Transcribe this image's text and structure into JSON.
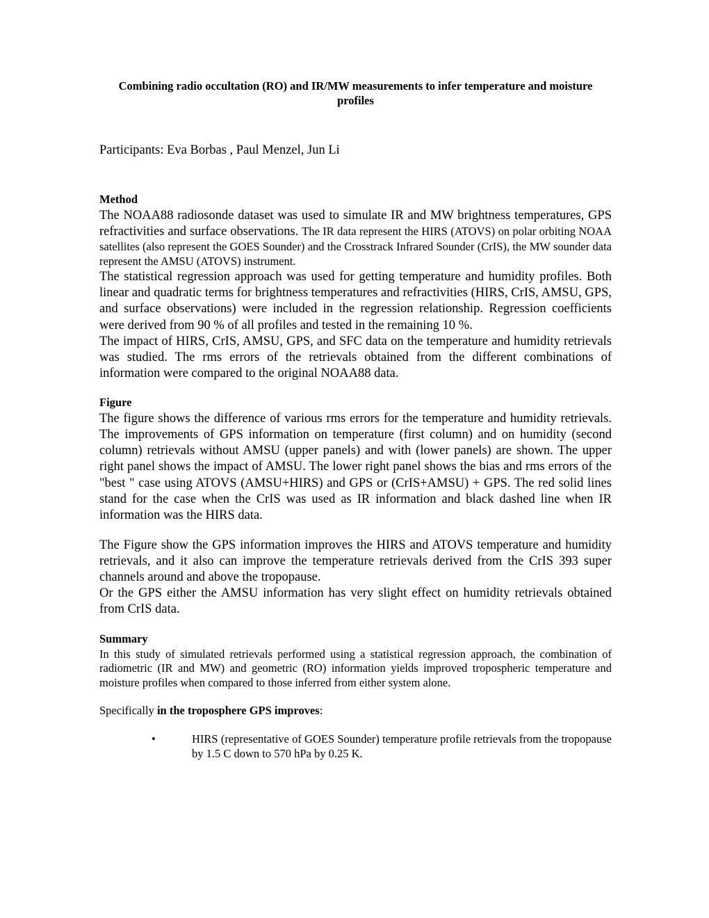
{
  "title": "Combining radio occultation (RO) and IR/MW measurements to infer temperature and moisture profiles",
  "participants": "Participants: Eva Borbas , Paul Menzel, Jun Li",
  "sections": {
    "method": {
      "heading": "Method",
      "para1_large": "The NOAA88 radiosonde dataset was used to simulate IR and MW brightness temperatures, GPS refractivities and surface observations. ",
      "para1_small": "The IR data represent the HIRS (ATOVS) on polar orbiting NOAA satellites (also represent the GOES Sounder) and the Crosstrack Infrared Sounder (CrIS), the MW sounder data represent the AMSU (ATOVS) instrument.",
      "para2": "The statistical regression approach was used for getting temperature and humidity profiles. Both linear and quadratic terms for brightness temperatures and refractivities (HIRS, CrIS, AMSU, GPS, and surface observations) were included in the regression relationship. Regression coefficients were derived from 90 % of all profiles and tested in the remaining 10 %.",
      "para3": "The impact of HIRS, CrIS, AMSU, GPS, and SFC data on the temperature and humidity retrievals was studied. The rms errors of the retrievals obtained from the different combinations of information were compared to the original NOAA88 data."
    },
    "figure": {
      "heading": "Figure",
      "para1": "The figure shows the difference of various rms errors for the temperature and humidity retrievals. The improvements of GPS information on temperature (first column) and on humidity (second column) retrievals without AMSU (upper panels) and with (lower panels) are shown. The upper right panel shows the impact of AMSU. The lower right panel shows the bias and rms errors of the \"best \" case using ATOVS (AMSU+HIRS) and GPS or (CrIS+AMSU) + GPS. The red solid lines stand for the case when the CrIS was used as IR information and black dashed line when IR information was the HIRS data.",
      "para2": "The Figure show the GPS information improves the HIRS and ATOVS temperature and humidity retrievals, and it also can improve the temperature retrievals derived from the CrIS 393 super channels around and above the tropopause.",
      "para3": "Or the GPS either the AMSU information has very slight effect on humidity retrievals obtained from CrIS data."
    },
    "summary": {
      "heading": "Summary",
      "para1": "In this study of simulated retrievals performed using a statistical regression approach, the combination of radiometric (IR and MW) and geometric (RO) information yields improved tropospheric temperature and moisture profiles when compared to those inferred from either system alone.",
      "specifically_pre": "Specifically ",
      "specifically_bold": "in the troposphere GPS improves",
      "specifically_post": ":",
      "bullet1": "HIRS (representative of GOES Sounder) temperature profile retrievals from the tropopause by 1.5 C down to 570 hPa by 0.25 K."
    }
  }
}
